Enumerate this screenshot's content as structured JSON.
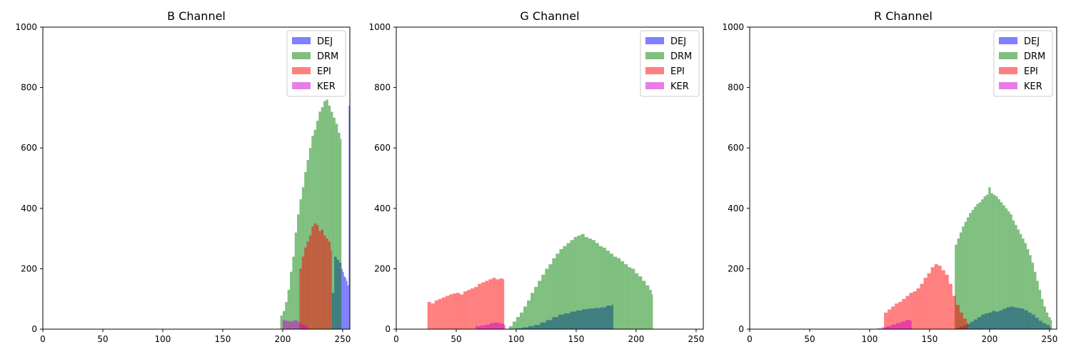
{
  "chart_data": [
    {
      "type": "histogram",
      "title": "B Channel",
      "xlim": [
        0,
        256
      ],
      "ylim": [
        0,
        1000
      ],
      "xticks": [
        0,
        50,
        100,
        150,
        200,
        250
      ],
      "yticks": [
        0,
        200,
        400,
        600,
        800,
        1000
      ],
      "grid": false,
      "legend_position": "top-right",
      "series": [
        {
          "name": "DEJ",
          "color": "#0000ff",
          "bins": [
            [
              241,
              120
            ],
            [
              243,
              240
            ],
            [
              245,
              230
            ],
            [
              247,
              220
            ],
            [
              249,
              200
            ],
            [
              250,
              190
            ],
            [
              251,
              175
            ],
            [
              252,
              170
            ],
            [
              253,
              160
            ],
            [
              254,
              145
            ],
            [
              255,
              740
            ]
          ]
        },
        {
          "name": "DRM",
          "color": "#008000",
          "bins": [
            [
              198,
              45
            ],
            [
              200,
              60
            ],
            [
              202,
              90
            ],
            [
              204,
              130
            ],
            [
              206,
              190
            ],
            [
              208,
              240
            ],
            [
              210,
              320
            ],
            [
              212,
              380
            ],
            [
              214,
              430
            ],
            [
              216,
              470
            ],
            [
              218,
              520
            ],
            [
              220,
              560
            ],
            [
              222,
              600
            ],
            [
              224,
              640
            ],
            [
              226,
              660
            ],
            [
              228,
              690
            ],
            [
              230,
              720
            ],
            [
              232,
              735
            ],
            [
              234,
              755
            ],
            [
              236,
              760
            ],
            [
              238,
              740
            ],
            [
              240,
              720
            ],
            [
              242,
              700
            ],
            [
              244,
              680
            ],
            [
              246,
              650
            ],
            [
              248,
              630
            ]
          ]
        },
        {
          "name": "EPI",
          "color": "#ff0000",
          "bins": [
            [
              214,
              200
            ],
            [
              216,
              240
            ],
            [
              218,
              270
            ],
            [
              220,
              290
            ],
            [
              222,
              310
            ],
            [
              224,
              340
            ],
            [
              226,
              350
            ],
            [
              228,
              345
            ],
            [
              230,
              325
            ],
            [
              232,
              330
            ],
            [
              234,
              310
            ],
            [
              236,
              300
            ],
            [
              238,
              290
            ],
            [
              240,
              260
            ]
          ]
        },
        {
          "name": "KER",
          "color": "#cc00cc",
          "bins": [
            [
              200,
              30
            ],
            [
              202,
              28
            ],
            [
              204,
              27
            ],
            [
              206,
              25
            ],
            [
              208,
              28
            ],
            [
              210,
              30
            ],
            [
              212,
              25
            ],
            [
              214,
              20
            ],
            [
              216,
              15
            ],
            [
              218,
              12
            ],
            [
              220,
              10
            ]
          ]
        }
      ]
    },
    {
      "type": "histogram",
      "title": "G Channel",
      "xlim": [
        0,
        256
      ],
      "ylim": [
        0,
        1000
      ],
      "xticks": [
        0,
        50,
        100,
        150,
        200,
        250
      ],
      "yticks": [
        0,
        200,
        400,
        600,
        800,
        1000
      ],
      "grid": false,
      "legend_position": "top-right",
      "series": [
        {
          "name": "DEJ",
          "color": "#0000ff",
          "bins": [
            [
              100,
              3
            ],
            [
              105,
              6
            ],
            [
              110,
              10
            ],
            [
              115,
              14
            ],
            [
              120,
              22
            ],
            [
              125,
              30
            ],
            [
              130,
              40
            ],
            [
              135,
              48
            ],
            [
              140,
              52
            ],
            [
              145,
              58
            ],
            [
              150,
              62
            ],
            [
              155,
              66
            ],
            [
              160,
              68
            ],
            [
              165,
              70
            ],
            [
              170,
              72
            ],
            [
              175,
              78
            ],
            [
              180,
              82
            ]
          ]
        },
        {
          "name": "DRM",
          "color": "#008000",
          "bins": [
            [
              94,
              10
            ],
            [
              97,
              25
            ],
            [
              100,
              40
            ],
            [
              103,
              55
            ],
            [
              106,
              75
            ],
            [
              109,
              95
            ],
            [
              112,
              120
            ],
            [
              115,
              140
            ],
            [
              118,
              160
            ],
            [
              121,
              180
            ],
            [
              124,
              200
            ],
            [
              127,
              215
            ],
            [
              130,
              235
            ],
            [
              133,
              250
            ],
            [
              136,
              265
            ],
            [
              139,
              275
            ],
            [
              142,
              285
            ],
            [
              145,
              295
            ],
            [
              148,
              305
            ],
            [
              151,
              310
            ],
            [
              154,
              315
            ],
            [
              157,
              305
            ],
            [
              160,
              300
            ],
            [
              163,
              295
            ],
            [
              166,
              285
            ],
            [
              169,
              275
            ],
            [
              172,
              270
            ],
            [
              175,
              260
            ],
            [
              178,
              250
            ],
            [
              181,
              240
            ],
            [
              184,
              235
            ],
            [
              187,
              225
            ],
            [
              190,
              215
            ],
            [
              193,
              205
            ],
            [
              196,
              200
            ],
            [
              199,
              185
            ],
            [
              202,
              175
            ],
            [
              205,
              160
            ],
            [
              208,
              145
            ],
            [
              211,
              130
            ],
            [
              213,
              115
            ]
          ]
        },
        {
          "name": "EPI",
          "color": "#ff0000",
          "bins": [
            [
              26,
              90
            ],
            [
              29,
              85
            ],
            [
              32,
              95
            ],
            [
              35,
              100
            ],
            [
              38,
              105
            ],
            [
              41,
              110
            ],
            [
              44,
              115
            ],
            [
              47,
              118
            ],
            [
              50,
              120
            ],
            [
              53,
              115
            ],
            [
              56,
              125
            ],
            [
              59,
              130
            ],
            [
              62,
              135
            ],
            [
              65,
              140
            ],
            [
              68,
              150
            ],
            [
              71,
              155
            ],
            [
              74,
              160
            ],
            [
              77,
              165
            ],
            [
              80,
              170
            ],
            [
              83,
              165
            ],
            [
              86,
              168
            ],
            [
              89,
              165
            ]
          ]
        },
        {
          "name": "KER",
          "color": "#cc00cc",
          "bins": [
            [
              66,
              10
            ],
            [
              70,
              12
            ],
            [
              74,
              15
            ],
            [
              78,
              20
            ],
            [
              82,
              22
            ],
            [
              86,
              18
            ],
            [
              90,
              14
            ]
          ]
        }
      ]
    },
    {
      "type": "histogram",
      "title": "R Channel",
      "xlim": [
        0,
        256
      ],
      "ylim": [
        0,
        1000
      ],
      "xticks": [
        0,
        50,
        100,
        150,
        200,
        250
      ],
      "yticks": [
        0,
        200,
        400,
        600,
        800,
        1000
      ],
      "grid": false,
      "legend_position": "top-right",
      "series": [
        {
          "name": "DEJ",
          "color": "#0000ff",
          "bins": [
            [
              172,
              5
            ],
            [
              175,
              8
            ],
            [
              178,
              12
            ],
            [
              181,
              18
            ],
            [
              184,
              25
            ],
            [
              187,
              32
            ],
            [
              190,
              40
            ],
            [
              193,
              48
            ],
            [
              196,
              52
            ],
            [
              199,
              55
            ],
            [
              202,
              60
            ],
            [
              205,
              58
            ],
            [
              208,
              62
            ],
            [
              211,
              68
            ],
            [
              214,
              72
            ],
            [
              217,
              75
            ],
            [
              220,
              72
            ],
            [
              223,
              70
            ],
            [
              226,
              68
            ],
            [
              229,
              62
            ],
            [
              232,
              55
            ],
            [
              235,
              48
            ],
            [
              238,
              38
            ],
            [
              241,
              28
            ],
            [
              244,
              20
            ],
            [
              247,
              14
            ],
            [
              250,
              8
            ]
          ]
        },
        {
          "name": "DRM",
          "color": "#008000",
          "bins": [
            [
              171,
              280
            ],
            [
              173,
              300
            ],
            [
              175,
              320
            ],
            [
              177,
              340
            ],
            [
              179,
              355
            ],
            [
              181,
              370
            ],
            [
              183,
              385
            ],
            [
              185,
              395
            ],
            [
              187,
              405
            ],
            [
              189,
              415
            ],
            [
              191,
              420
            ],
            [
              193,
              430
            ],
            [
              195,
              440
            ],
            [
              197,
              445
            ],
            [
              199,
              470
            ],
            [
              201,
              450
            ],
            [
              203,
              445
            ],
            [
              205,
              440
            ],
            [
              207,
              430
            ],
            [
              209,
              420
            ],
            [
              211,
              410
            ],
            [
              213,
              400
            ],
            [
              215,
              390
            ],
            [
              217,
              380
            ],
            [
              219,
              360
            ],
            [
              221,
              345
            ],
            [
              223,
              330
            ],
            [
              225,
              315
            ],
            [
              227,
              300
            ],
            [
              229,
              285
            ],
            [
              231,
              265
            ],
            [
              233,
              245
            ],
            [
              235,
              220
            ],
            [
              237,
              190
            ],
            [
              239,
              160
            ],
            [
              241,
              130
            ],
            [
              243,
              100
            ],
            [
              245,
              75
            ],
            [
              247,
              55
            ],
            [
              249,
              40
            ],
            [
              251,
              30
            ]
          ]
        },
        {
          "name": "EPI",
          "color": "#ff0000",
          "bins": [
            [
              112,
              55
            ],
            [
              115,
              65
            ],
            [
              118,
              75
            ],
            [
              121,
              85
            ],
            [
              124,
              90
            ],
            [
              127,
              100
            ],
            [
              130,
              110
            ],
            [
              133,
              120
            ],
            [
              136,
              125
            ],
            [
              139,
              135
            ],
            [
              142,
              150
            ],
            [
              145,
              170
            ],
            [
              148,
              185
            ],
            [
              151,
              205
            ],
            [
              154,
              215
            ],
            [
              157,
              210
            ],
            [
              160,
              195
            ],
            [
              163,
              180
            ],
            [
              166,
              150
            ],
            [
              169,
              110
            ],
            [
              172,
              80
            ],
            [
              175,
              55
            ],
            [
              178,
              35
            ],
            [
              181,
              20
            ]
          ]
        },
        {
          "name": "KER",
          "color": "#cc00cc",
          "bins": [
            [
              106,
              3
            ],
            [
              110,
              6
            ],
            [
              114,
              10
            ],
            [
              118,
              15
            ],
            [
              122,
              20
            ],
            [
              126,
              25
            ],
            [
              130,
              30
            ],
            [
              134,
              28
            ]
          ]
        }
      ]
    }
  ]
}
